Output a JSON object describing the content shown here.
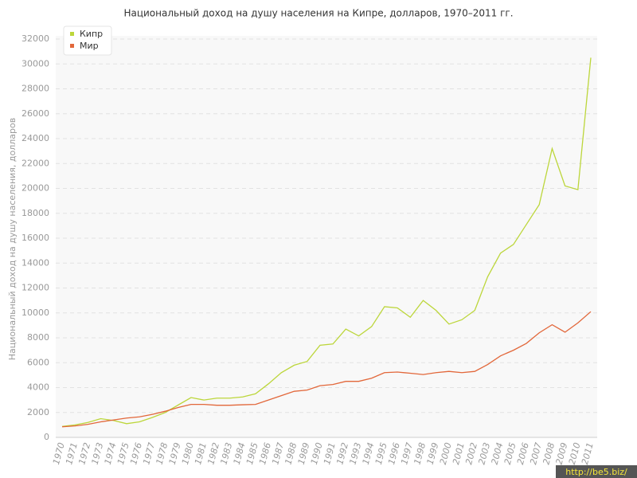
{
  "chart_data": {
    "type": "line",
    "title": "Национальный доход на душу населения на Кипре, долларов, 1970–2011 гг.",
    "y_label": "Национальный доход на душу населения, долларов",
    "categories": [
      "1970",
      "1971",
      "1972",
      "1973",
      "1974",
      "1975",
      "1976",
      "1977",
      "1978",
      "1979",
      "1980",
      "1981",
      "1982",
      "1983",
      "1984",
      "1985",
      "1986",
      "1987",
      "1988",
      "1989",
      "1990",
      "1991",
      "1992",
      "1993",
      "1994",
      "1995",
      "1996",
      "1997",
      "1998",
      "1999",
      "2000",
      "2001",
      "2002",
      "2003",
      "2004",
      "2005",
      "2006",
      "2007",
      "2008",
      "2009",
      "2010",
      "2011"
    ],
    "series": [
      {
        "name": "Кипр",
        "color": "#bcd63a",
        "values": [
          880,
          1000,
          1200,
          1500,
          1350,
          1100,
          1250,
          1600,
          2000,
          2600,
          3200,
          3000,
          3150,
          3150,
          3250,
          3500,
          4300,
          5200,
          5800,
          6100,
          7400,
          7500,
          8700,
          8150,
          8900,
          10500,
          10400,
          9650,
          11000,
          10200,
          9100,
          9450,
          10200,
          12900,
          14800,
          15500,
          17100,
          18700,
          23200,
          20200,
          19900,
          30500
        ]
      },
      {
        "name": "Мир",
        "color": "#e2673a",
        "values": [
          850,
          920,
          1050,
          1250,
          1400,
          1550,
          1650,
          1850,
          2100,
          2400,
          2650,
          2650,
          2580,
          2580,
          2620,
          2650,
          3000,
          3350,
          3700,
          3800,
          4150,
          4250,
          4500,
          4500,
          4750,
          5200,
          5250,
          5150,
          5050,
          5200,
          5300,
          5200,
          5300,
          5850,
          6550,
          7000,
          7550,
          8400,
          9050,
          8450,
          9200,
          10100
        ]
      }
    ],
    "ylim": [
      0,
      32000
    ],
    "yticks": [
      0,
      2000,
      4000,
      6000,
      8000,
      10000,
      12000,
      14000,
      16000,
      18000,
      20000,
      22000,
      24000,
      26000,
      28000,
      30000,
      32000
    ],
    "grid": true,
    "legend": "top-left",
    "watermark": "http://be5.biz/"
  }
}
